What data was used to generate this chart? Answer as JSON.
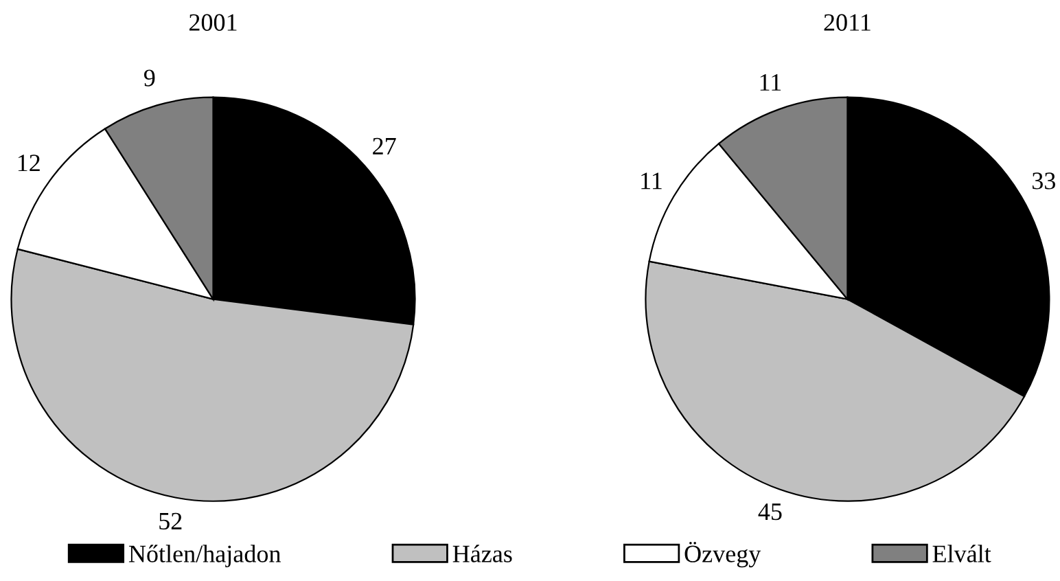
{
  "chart_data": [
    {
      "type": "pie",
      "title": "2001",
      "categories": [
        "Nőtlen/hajadon",
        "Házas",
        "Özvegy",
        "Elvált"
      ],
      "values": [
        27,
        52,
        12,
        9
      ],
      "colors": [
        "#000000",
        "#c0c0c0",
        "#ffffff",
        "#808080"
      ],
      "data_labels": true,
      "legend": "bottom"
    },
    {
      "type": "pie",
      "title": "2011",
      "categories": [
        null,
        null,
        null,
        null
      ],
      "values": [
        33,
        45,
        11,
        11
      ],
      "colors": [
        "#000000",
        "#c0c0c0",
        "#ffffff",
        "#808080"
      ],
      "data_labels": true
    }
  ]
}
